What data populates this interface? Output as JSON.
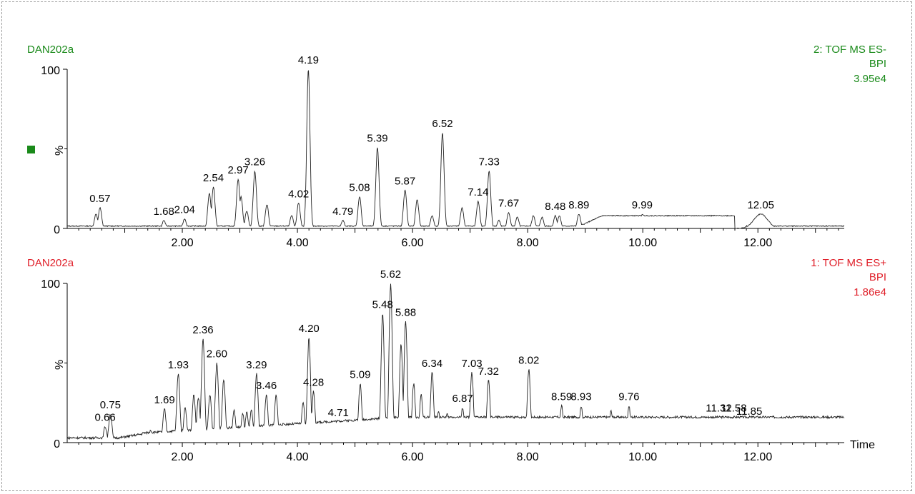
{
  "colors": {
    "top": "#1a8a1a",
    "bottom": "#e0202a",
    "trace": "#222222"
  },
  "chart_data": [
    {
      "type": "line",
      "sample": "DAN202a",
      "title_lines": [
        "2: TOF MS ES-",
        "BPI",
        "3.95e4"
      ],
      "ylabel": "%",
      "xlabel": "",
      "xlim": [
        0,
        13.5
      ],
      "ylim": [
        0,
        100
      ],
      "x_ticks": [
        "2.00",
        "4.00",
        "6.00",
        "8.00",
        "10.00",
        "12.00"
      ],
      "y_ticks": [
        "0",
        "100"
      ],
      "legend_marker": "green-square",
      "peaks": [
        {
          "x": 0.57,
          "y": 13,
          "label": "0.57"
        },
        {
          "x": 1.68,
          "y": 5,
          "label": "1.68"
        },
        {
          "x": 2.04,
          "y": 6,
          "label": "2.04"
        },
        {
          "x": 2.54,
          "y": 26,
          "label": "2.54"
        },
        {
          "x": 2.97,
          "y": 31,
          "label": "2.97"
        },
        {
          "x": 3.26,
          "y": 36,
          "label": "3.26"
        },
        {
          "x": 4.02,
          "y": 16,
          "label": "4.02"
        },
        {
          "x": 4.19,
          "y": 100,
          "label": "4.19"
        },
        {
          "x": 4.79,
          "y": 5,
          "label": "4.79"
        },
        {
          "x": 5.08,
          "y": 20,
          "label": "5.08"
        },
        {
          "x": 5.39,
          "y": 51,
          "label": "5.39"
        },
        {
          "x": 5.87,
          "y": 24,
          "label": "5.87"
        },
        {
          "x": 6.52,
          "y": 60,
          "label": "6.52"
        },
        {
          "x": 7.14,
          "y": 17,
          "label": "7.14"
        },
        {
          "x": 7.33,
          "y": 36,
          "label": "7.33"
        },
        {
          "x": 7.67,
          "y": 10,
          "label": "7.67"
        },
        {
          "x": 8.48,
          "y": 8,
          "label": "8.48"
        },
        {
          "x": 8.89,
          "y": 9,
          "label": "8.89"
        },
        {
          "x": 9.99,
          "y": 9,
          "label": "9.99"
        },
        {
          "x": 12.05,
          "y": 9,
          "label": "12.05"
        }
      ],
      "unlabeled_peaks": [
        {
          "x": 0.5,
          "y": 9
        },
        {
          "x": 2.47,
          "y": 22
        },
        {
          "x": 3.02,
          "y": 20
        },
        {
          "x": 3.12,
          "y": 11
        },
        {
          "x": 3.47,
          "y": 15
        },
        {
          "x": 3.9,
          "y": 8
        },
        {
          "x": 6.08,
          "y": 18
        },
        {
          "x": 6.34,
          "y": 8
        },
        {
          "x": 6.86,
          "y": 13
        },
        {
          "x": 7.5,
          "y": 5
        },
        {
          "x": 7.82,
          "y": 7
        },
        {
          "x": 8.1,
          "y": 8
        },
        {
          "x": 8.25,
          "y": 7
        },
        {
          "x": 8.55,
          "y": 8
        }
      ],
      "plateaus": [
        {
          "from": 9.3,
          "to": 11.6,
          "y": 8
        },
        {
          "from": 11.75,
          "to": 11.8,
          "y": 0
        }
      ]
    },
    {
      "type": "line",
      "sample": "DAN202a",
      "title_lines": [
        "1: TOF MS ES+",
        "BPI",
        "1.86e4"
      ],
      "ylabel": "%",
      "xlabel": "Time",
      "xlim": [
        0,
        13.5
      ],
      "ylim": [
        0,
        100
      ],
      "x_ticks": [
        "2.00",
        "4.00",
        "6.00",
        "8.00",
        "10.00",
        "12.00"
      ],
      "y_ticks": [
        "0",
        "100"
      ],
      "peaks": [
        {
          "x": 0.66,
          "y": 10,
          "label": "0.66"
        },
        {
          "x": 0.75,
          "y": 18,
          "label": "0.75"
        },
        {
          "x": 1.69,
          "y": 21,
          "label": "1.69"
        },
        {
          "x": 1.93,
          "y": 43,
          "label": "1.93"
        },
        {
          "x": 2.36,
          "y": 65,
          "label": "2.36"
        },
        {
          "x": 2.6,
          "y": 50,
          "label": "2.60"
        },
        {
          "x": 3.29,
          "y": 43,
          "label": "3.29"
        },
        {
          "x": 3.46,
          "y": 30,
          "label": "3.46"
        },
        {
          "x": 4.2,
          "y": 66,
          "label": "4.20"
        },
        {
          "x": 4.28,
          "y": 32,
          "label": "4.28"
        },
        {
          "x": 4.71,
          "y": 13,
          "label": "4.71"
        },
        {
          "x": 5.09,
          "y": 37,
          "label": "5.09"
        },
        {
          "x": 5.48,
          "y": 81,
          "label": "5.48"
        },
        {
          "x": 5.62,
          "y": 100,
          "label": "5.62"
        },
        {
          "x": 5.88,
          "y": 76,
          "label": "5.88"
        },
        {
          "x": 6.34,
          "y": 44,
          "label": "6.34"
        },
        {
          "x": 6.87,
          "y": 22,
          "label": "6.87"
        },
        {
          "x": 7.03,
          "y": 44,
          "label": "7.03"
        },
        {
          "x": 7.32,
          "y": 39,
          "label": "7.32"
        },
        {
          "x": 8.02,
          "y": 46,
          "label": "8.02"
        },
        {
          "x": 8.59,
          "y": 23,
          "label": "8.59"
        },
        {
          "x": 8.93,
          "y": 23,
          "label": "8.93"
        },
        {
          "x": 9.76,
          "y": 23,
          "label": "9.76"
        },
        {
          "x": 11.32,
          "y": 16,
          "label": "11.32"
        },
        {
          "x": 11.58,
          "y": 16,
          "label": "11.58"
        },
        {
          "x": 11.85,
          "y": 14,
          "label": "11.85"
        }
      ],
      "unlabeled_peaks": [
        {
          "x": 1.45,
          "y": 8
        },
        {
          "x": 2.05,
          "y": 22
        },
        {
          "x": 2.2,
          "y": 30
        },
        {
          "x": 2.28,
          "y": 28
        },
        {
          "x": 2.48,
          "y": 30
        },
        {
          "x": 2.72,
          "y": 40
        },
        {
          "x": 2.9,
          "y": 20
        },
        {
          "x": 3.05,
          "y": 18
        },
        {
          "x": 3.12,
          "y": 19
        },
        {
          "x": 3.2,
          "y": 20
        },
        {
          "x": 3.63,
          "y": 30
        },
        {
          "x": 4.1,
          "y": 25
        },
        {
          "x": 5.8,
          "y": 62
        },
        {
          "x": 6.02,
          "y": 37
        },
        {
          "x": 6.15,
          "y": 30
        },
        {
          "x": 6.45,
          "y": 20
        },
        {
          "x": 6.6,
          "y": 18
        },
        {
          "x": 9.45,
          "y": 20
        },
        {
          "x": 11.2,
          "y": 15
        },
        {
          "x": 11.42,
          "y": 15
        },
        {
          "x": 11.7,
          "y": 15
        }
      ]
    }
  ]
}
